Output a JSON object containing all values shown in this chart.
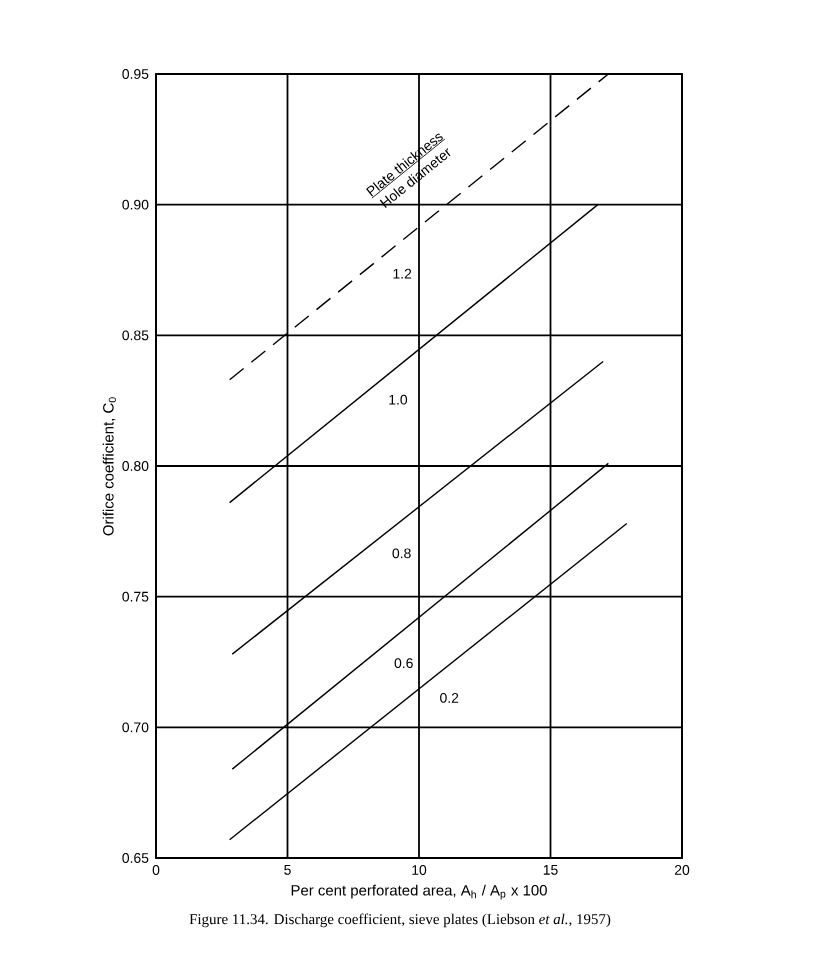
{
  "chart_data": {
    "type": "line",
    "xlabel": "Per cent perforated area,  A$_{h}$ / A$_{p}$ x 100",
    "ylabel": "Orifice coefficient, C$_{0}$",
    "legend_title": "Plate thickness",
    "annotations": [
      "Hole diameter",
      "Figure 11.34.   Discharge coefficient, sieve plates (Liebson *et al.*, 1957)"
    ],
    "xlim": [
      0,
      20
    ],
    "xticks": [
      0,
      5,
      10,
      15,
      20
    ],
    "ylim": [
      0.65,
      0.95
    ],
    "yticks": [
      {
        "value": 0.65,
        "label": "0.65"
      },
      {
        "value": 0.7,
        "label": "0.70"
      },
      {
        "value": 0.75,
        "label": "0.75"
      },
      {
        "value": 0.8,
        "label": "0.80"
      },
      {
        "value": 0.85,
        "label": "0.85"
      },
      {
        "value": 0.9,
        "label": "0.90"
      },
      {
        "value": 0.95,
        "label": "0.95"
      }
    ],
    "grid": true,
    "marker": "none",
    "series": [
      {
        "name": "1.2",
        "color": "#000000",
        "line_style": "dashed",
        "x": [
          2.8,
          17.2
        ],
        "values": [
          0.833,
          0.95
        ]
      },
      {
        "name": "1.0",
        "color": "#000000",
        "line_style": "solid",
        "x": [
          2.8,
          16.8
        ],
        "values": [
          0.786,
          0.9
        ]
      },
      {
        "name": "0.8",
        "color": "#000000",
        "line_style": "solid",
        "x": [
          2.9,
          17.0
        ],
        "values": [
          0.728,
          0.84
        ]
      },
      {
        "name": "0.6",
        "color": "#000000",
        "line_style": "solid",
        "x": [
          2.9,
          17.2
        ],
        "values": [
          0.684,
          0.801
        ]
      },
      {
        "name": "0.2",
        "color": "#000000",
        "line_style": "solid",
        "x": [
          2.8,
          17.9
        ],
        "values": [
          0.657,
          0.778
        ]
      }
    ]
  }
}
